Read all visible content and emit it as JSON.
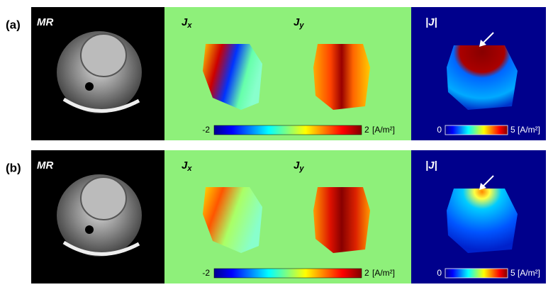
{
  "rows": [
    {
      "label": "(a)",
      "mr_label": "MR",
      "jx": {
        "base": "J",
        "sub": "x"
      },
      "jy": {
        "base": "J",
        "sub": "y"
      },
      "magnitude_label": "|J|",
      "j_colorbar": {
        "min": -2,
        "max": 2,
        "unit": "[A/m²]"
      },
      "magnitude_colorbar": {
        "min": 0,
        "max": 5,
        "unit": "[A/m²]"
      }
    },
    {
      "label": "(b)",
      "mr_label": "MR",
      "jx": {
        "base": "J",
        "sub": "x"
      },
      "jy": {
        "base": "J",
        "sub": "y"
      },
      "magnitude_label": "|J|",
      "j_colorbar": {
        "min": -2,
        "max": 2,
        "unit": "[A/m²]"
      },
      "magnitude_colorbar": {
        "min": 0,
        "max": 5,
        "unit": "[A/m²]"
      }
    }
  ]
}
